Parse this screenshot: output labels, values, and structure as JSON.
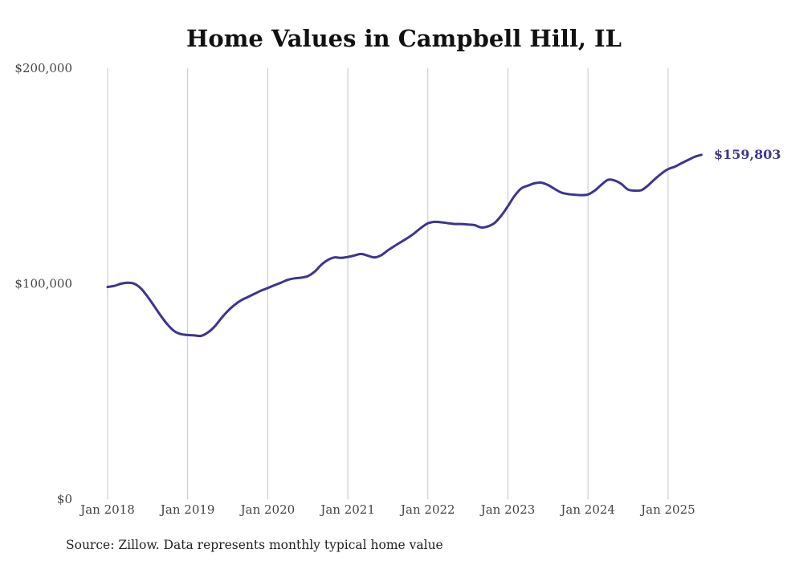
{
  "chart_data": {
    "type": "line",
    "title": "Home Values in Campbell Hill, IL",
    "source": "Source: Zillow. Data represents monthly typical home value",
    "xlabel": "",
    "ylabel": "",
    "ylim": [
      0,
      200000
    ],
    "xlim": [
      "2018-01",
      "2025-06"
    ],
    "y_ticks": [
      {
        "value": 0,
        "label": "$0"
      },
      {
        "value": 100000,
        "label": "$100,000"
      },
      {
        "value": 200000,
        "label": "$200,000"
      }
    ],
    "x_ticks": [
      {
        "value": "2018-01",
        "label": "Jan 2018"
      },
      {
        "value": "2019-01",
        "label": "Jan 2019"
      },
      {
        "value": "2020-01",
        "label": "Jan 2020"
      },
      {
        "value": "2021-01",
        "label": "Jan 2021"
      },
      {
        "value": "2022-01",
        "label": "Jan 2022"
      },
      {
        "value": "2023-01",
        "label": "Jan 2023"
      },
      {
        "value": "2024-01",
        "label": "Jan 2024"
      },
      {
        "value": "2025-01",
        "label": "Jan 2025"
      }
    ],
    "grid": {
      "vertical": true,
      "horizontal": false
    },
    "line_color": "#3d3591",
    "end_label": "$159,803",
    "series": [
      {
        "x": [
          "2018-01",
          "2018-02",
          "2018-03",
          "2018-04",
          "2018-05",
          "2018-06",
          "2018-07",
          "2018-08",
          "2018-09",
          "2018-10",
          "2018-11",
          "2018-12",
          "2019-01",
          "2019-02",
          "2019-03",
          "2019-04",
          "2019-05",
          "2019-06",
          "2019-07",
          "2019-08",
          "2019-09",
          "2019-10",
          "2019-11",
          "2019-12",
          "2020-01",
          "2020-02",
          "2020-03",
          "2020-04",
          "2020-05",
          "2020-06",
          "2020-07",
          "2020-08",
          "2020-09",
          "2020-10",
          "2020-11",
          "2020-12",
          "2021-01",
          "2021-02",
          "2021-03",
          "2021-04",
          "2021-05",
          "2021-06",
          "2021-07",
          "2021-08",
          "2021-09",
          "2021-10",
          "2021-11",
          "2021-12",
          "2022-01",
          "2022-02",
          "2022-03",
          "2022-04",
          "2022-05",
          "2022-06",
          "2022-07",
          "2022-08",
          "2022-09",
          "2022-10",
          "2022-11",
          "2022-12",
          "2023-01",
          "2023-02",
          "2023-03",
          "2023-04",
          "2023-05",
          "2023-06",
          "2023-07",
          "2023-08",
          "2023-09",
          "2023-10",
          "2023-11",
          "2023-12",
          "2024-01",
          "2024-02",
          "2024-03",
          "2024-04",
          "2024-05",
          "2024-06",
          "2024-07",
          "2024-08",
          "2024-09",
          "2024-10",
          "2024-11",
          "2024-12",
          "2025-01",
          "2025-02",
          "2025-03",
          "2025-04",
          "2025-05",
          "2025-06"
        ],
        "values": [
          98500,
          99000,
          100000,
          100500,
          100000,
          97800,
          94000,
          89500,
          85000,
          81000,
          78000,
          76600,
          76200,
          76000,
          75800,
          77300,
          80000,
          83800,
          87300,
          90100,
          92300,
          93800,
          95300,
          96800,
          98000,
          99300,
          100500,
          101800,
          102500,
          102800,
          103500,
          105500,
          108700,
          111000,
          112200,
          112000,
          112400,
          113100,
          113800,
          113000,
          112200,
          113200,
          115500,
          117500,
          119400,
          121300,
          123500,
          126000,
          128000,
          128700,
          128500,
          128100,
          127700,
          127700,
          127500,
          127200,
          126100,
          126600,
          128200,
          131600,
          136000,
          140800,
          144200,
          145500,
          146600,
          146900,
          145800,
          144000,
          142300,
          141600,
          141300,
          141100,
          141400,
          143200,
          145900,
          148200,
          147900,
          146300,
          143700,
          143200,
          143400,
          145600,
          148500,
          151100,
          153200,
          154300,
          155900,
          157400,
          158900,
          159803
        ]
      }
    ]
  }
}
